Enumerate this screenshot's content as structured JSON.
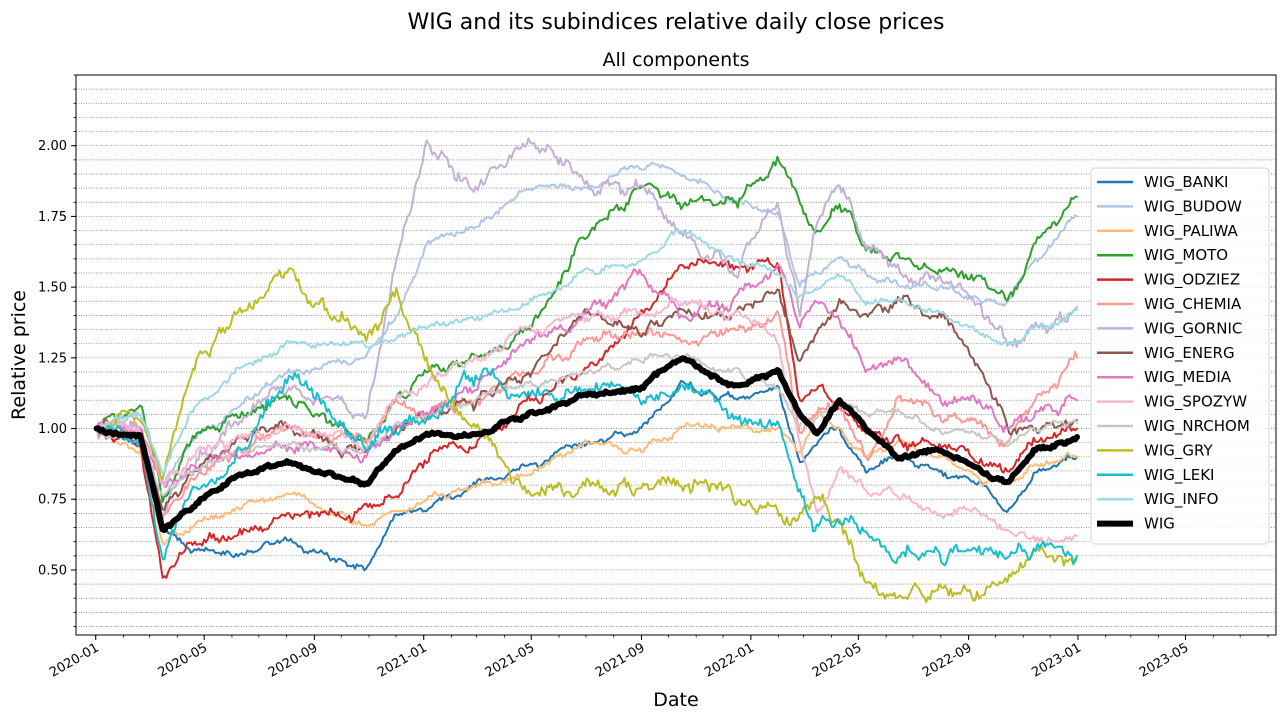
{
  "chart_data": {
    "type": "line",
    "suptitle": "WIG and its subindices relative daily close prices",
    "title": "All components",
    "xlabel": "Date",
    "ylabel": "Relative price",
    "xlim": [
      "2019-12-10",
      "2023-08-10"
    ],
    "ylim": [
      0.27,
      2.25
    ],
    "x_ticks": [
      "2020-01",
      "2020-05",
      "2020-09",
      "2021-01",
      "2021-05",
      "2021-09",
      "2022-01",
      "2022-05",
      "2022-09",
      "2023-01",
      "2023-05"
    ],
    "y_ticks": [
      "0.50",
      "0.75",
      "1.00",
      "1.25",
      "1.50",
      "1.75",
      "2.00"
    ],
    "grid": "horizontal minor dotted",
    "legend_position": "right",
    "anchor_dates": [
      "2020-01-02",
      "2020-02-20",
      "2020-03-16",
      "2020-04-15",
      "2020-06-01",
      "2020-08-01",
      "2020-10-28",
      "2020-12-01",
      "2021-01-05",
      "2021-03-01",
      "2021-05-01",
      "2021-07-01",
      "2021-09-01",
      "2021-10-15",
      "2021-12-15",
      "2022-02-01",
      "2022-02-24",
      "2022-03-15",
      "2022-04-10",
      "2022-05-10",
      "2022-06-15",
      "2022-08-01",
      "2022-09-15",
      "2022-10-15",
      "2022-11-15",
      "2022-12-31"
    ],
    "series": [
      {
        "name": "WIG_BANKI",
        "color": "#1f77b4",
        "width": 2,
        "noise": 0.02,
        "values": [
          1.0,
          0.95,
          0.65,
          0.58,
          0.55,
          0.6,
          0.5,
          0.7,
          0.72,
          0.8,
          0.87,
          0.95,
          1.0,
          1.15,
          1.1,
          1.15,
          0.88,
          0.95,
          1.0,
          0.85,
          0.9,
          0.85,
          0.8,
          0.7,
          0.85,
          0.9
        ]
      },
      {
        "name": "WIG_BUDOW",
        "color": "#aec7e8",
        "width": 2,
        "noise": 0.02,
        "values": [
          1.0,
          1.05,
          0.8,
          0.95,
          1.05,
          1.2,
          1.25,
          1.4,
          1.65,
          1.72,
          1.85,
          1.85,
          1.93,
          1.9,
          1.8,
          1.75,
          1.5,
          1.55,
          1.6,
          1.55,
          1.5,
          1.5,
          1.45,
          1.45,
          1.6,
          1.75
        ]
      },
      {
        "name": "WIG_PALIWA",
        "color": "#ffbb78",
        "width": 2,
        "noise": 0.02,
        "values": [
          1.0,
          0.9,
          0.6,
          0.65,
          0.72,
          0.78,
          0.65,
          0.7,
          0.75,
          0.8,
          0.85,
          0.95,
          0.92,
          1.0,
          1.0,
          1.0,
          0.9,
          1.05,
          1.0,
          0.9,
          0.95,
          0.9,
          0.82,
          0.8,
          0.88,
          0.9
        ]
      },
      {
        "name": "WIG_MOTO",
        "color": "#2ca02c",
        "width": 2,
        "noise": 0.03,
        "values": [
          1.0,
          1.1,
          0.75,
          0.95,
          1.05,
          1.1,
          0.95,
          1.1,
          1.2,
          1.25,
          1.35,
          1.7,
          1.85,
          1.8,
          1.8,
          1.95,
          1.8,
          1.7,
          1.8,
          1.65,
          1.6,
          1.55,
          1.55,
          1.45,
          1.65,
          1.82
        ]
      },
      {
        "name": "WIG_ODZIEZ",
        "color": "#d62728",
        "width": 2,
        "noise": 0.03,
        "values": [
          1.0,
          0.95,
          0.45,
          0.58,
          0.62,
          0.68,
          0.7,
          0.75,
          0.9,
          0.95,
          1.1,
          1.2,
          1.4,
          1.6,
          1.55,
          1.6,
          1.1,
          1.15,
          1.05,
          1.0,
          0.95,
          0.95,
          0.9,
          0.85,
          0.95,
          1.0
        ]
      },
      {
        "name": "WIG_CHEMIA",
        "color": "#ff9896",
        "width": 2,
        "noise": 0.03,
        "values": [
          1.0,
          1.0,
          0.7,
          0.8,
          0.9,
          1.0,
          0.95,
          1.1,
          1.05,
          1.1,
          1.2,
          1.3,
          1.35,
          1.3,
          1.35,
          1.4,
          1.0,
          1.05,
          1.1,
          0.9,
          1.1,
          1.05,
          1.0,
          0.95,
          1.1,
          1.25
        ]
      },
      {
        "name": "WIG_GORNIC",
        "color": "#c5b0d5",
        "width": 2,
        "noise": 0.04,
        "values": [
          1.0,
          1.0,
          0.7,
          0.85,
          1.0,
          1.15,
          1.05,
          1.6,
          2.0,
          1.85,
          2.05,
          1.85,
          1.85,
          1.7,
          1.55,
          1.8,
          1.4,
          1.75,
          1.9,
          1.65,
          1.55,
          1.5,
          1.45,
          1.3,
          1.35,
          1.43
        ]
      },
      {
        "name": "WIG_ENERG",
        "color": "#8c564b",
        "width": 2,
        "noise": 0.03,
        "values": [
          1.0,
          1.0,
          0.7,
          0.85,
          0.95,
          1.0,
          0.9,
          1.0,
          1.05,
          1.1,
          1.2,
          1.4,
          1.35,
          1.4,
          1.4,
          1.5,
          1.25,
          1.35,
          1.45,
          1.4,
          1.45,
          1.4,
          1.2,
          1.0,
          1.0,
          1.03
        ]
      },
      {
        "name": "WIG_MEDIA",
        "color": "#e377c2",
        "width": 2,
        "noise": 0.03,
        "values": [
          1.0,
          1.0,
          0.8,
          0.85,
          0.9,
          0.95,
          0.9,
          1.0,
          1.05,
          1.15,
          1.3,
          1.4,
          1.55,
          1.4,
          1.45,
          1.6,
          1.35,
          1.45,
          1.4,
          1.2,
          1.25,
          1.1,
          1.1,
          1.0,
          1.05,
          1.1
        ]
      },
      {
        "name": "WIG_SPOZYW",
        "color": "#f7b6d2",
        "width": 2,
        "noise": 0.03,
        "values": [
          1.0,
          1.0,
          0.8,
          0.9,
          0.95,
          1.0,
          0.95,
          1.1,
          1.15,
          1.25,
          1.35,
          1.4,
          1.4,
          1.45,
          1.4,
          1.3,
          0.95,
          0.7,
          0.85,
          0.8,
          0.75,
          0.7,
          0.7,
          0.65,
          0.63,
          0.62
        ]
      },
      {
        "name": "WIG_NRCHOM",
        "color": "#c7c7c7",
        "width": 2,
        "noise": 0.02,
        "values": [
          1.0,
          0.95,
          0.75,
          0.85,
          0.9,
          0.95,
          0.92,
          1.0,
          1.05,
          1.1,
          1.15,
          1.2,
          1.25,
          1.25,
          1.2,
          1.15,
          1.0,
          1.05,
          1.1,
          1.05,
          1.05,
          1.0,
          0.98,
          0.95,
          1.0,
          1.02
        ]
      },
      {
        "name": "WIG_GRY",
        "color": "#bcbd22",
        "width": 2,
        "noise": 0.04,
        "values": [
          1.0,
          1.05,
          0.85,
          1.2,
          1.4,
          1.55,
          1.3,
          1.5,
          1.2,
          1.0,
          0.75,
          0.8,
          0.78,
          0.82,
          0.75,
          0.7,
          0.7,
          0.75,
          0.65,
          0.45,
          0.42,
          0.42,
          0.4,
          0.45,
          0.58,
          0.55
        ]
      },
      {
        "name": "WIG_LEKI",
        "color": "#17becf",
        "width": 2,
        "noise": 0.04,
        "values": [
          1.0,
          0.95,
          0.55,
          0.8,
          0.85,
          1.2,
          0.95,
          1.0,
          1.05,
          1.2,
          1.1,
          1.15,
          1.1,
          1.15,
          1.05,
          1.0,
          0.75,
          0.65,
          0.7,
          0.65,
          0.55,
          0.55,
          0.58,
          0.55,
          0.58,
          0.55
        ]
      },
      {
        "name": "WIG_INFO",
        "color": "#9edae5",
        "width": 2,
        "noise": 0.02,
        "values": [
          1.0,
          1.05,
          0.85,
          1.05,
          1.2,
          1.3,
          1.3,
          1.33,
          1.35,
          1.4,
          1.45,
          1.55,
          1.6,
          1.7,
          1.6,
          1.55,
          1.45,
          1.5,
          1.55,
          1.45,
          1.45,
          1.4,
          1.35,
          1.3,
          1.35,
          1.42
        ]
      },
      {
        "name": "WIG",
        "color": "#000000",
        "width": 6,
        "noise": 0.012,
        "values": [
          1.0,
          0.97,
          0.65,
          0.72,
          0.82,
          0.88,
          0.8,
          0.92,
          0.98,
          0.98,
          1.05,
          1.12,
          1.15,
          1.25,
          1.15,
          1.2,
          1.05,
          0.98,
          1.1,
          1.0,
          0.9,
          0.92,
          0.85,
          0.8,
          0.92,
          0.97
        ]
      }
    ]
  }
}
